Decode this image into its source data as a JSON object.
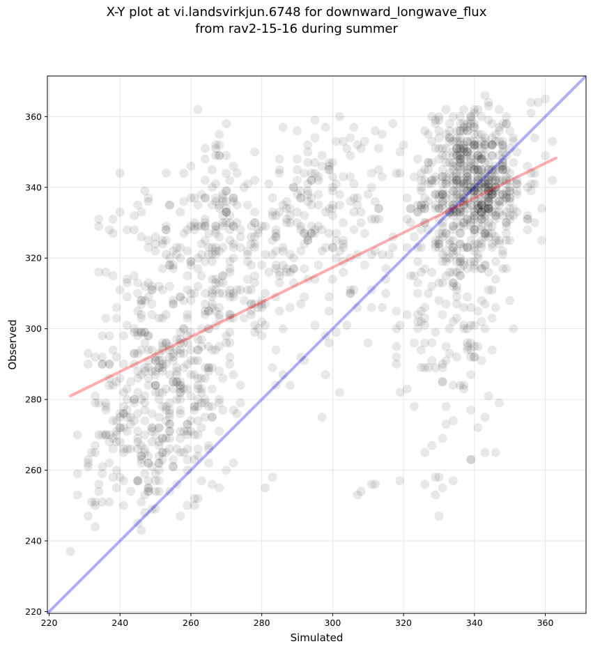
{
  "chart_data": {
    "type": "scatter",
    "title_line1": "X-Y plot at vi.landsvirkjun.6748 for downward_longwave_flux",
    "title_line2": "from rav2-15-16 during summer",
    "xlabel": "Simulated",
    "ylabel": "Observed",
    "xlim": [
      219.5,
      371.5
    ],
    "ylim": [
      219.5,
      371.5
    ],
    "xticks": [
      220,
      240,
      260,
      280,
      300,
      320,
      340,
      360
    ],
    "yticks": [
      220,
      240,
      260,
      280,
      300,
      320,
      340,
      360
    ],
    "grid": true,
    "point_color": "#000000",
    "point_alpha": 0.09,
    "reference_line": {
      "label": "1:1",
      "color": "#0000ff",
      "x": [
        219.5,
        371.5
      ],
      "y": [
        219.5,
        371.5
      ]
    },
    "fit_line": {
      "color": "#ff0000",
      "x": [
        226,
        363
      ],
      "y": [
        281,
        348.3
      ]
    },
    "clusters": [
      {
        "cx": 340,
        "cy": 342,
        "sx": 7,
        "sy": 11,
        "n": 520,
        "seed": 11
      },
      {
        "cx": 333,
        "cy": 312,
        "sx": 7,
        "sy": 22,
        "n": 200,
        "seed": 23
      },
      {
        "cx": 252,
        "cy": 283,
        "sx": 9,
        "sy": 16,
        "n": 340,
        "seed": 37
      },
      {
        "cx": 270,
        "cy": 322,
        "sx": 14,
        "sy": 15,
        "n": 300,
        "seed": 41
      },
      {
        "cx": 300,
        "cy": 330,
        "sx": 13,
        "sy": 17,
        "n": 170,
        "seed": 53
      },
      {
        "cx": 240,
        "cy": 262,
        "sx": 7,
        "sy": 9,
        "n": 50,
        "seed": 67
      }
    ],
    "points": [
      [
        226,
        237
      ],
      [
        231,
        247
      ],
      [
        232,
        251
      ],
      [
        233,
        251
      ],
      [
        234,
        254
      ],
      [
        246,
        243
      ],
      [
        234,
        331
      ],
      [
        238,
        331
      ],
      [
        234,
        329
      ],
      [
        240,
        333
      ],
      [
        234,
        316
      ],
      [
        242,
        328
      ],
      [
        238,
        315
      ],
      [
        239,
        303
      ],
      [
        302,
        360
      ],
      [
        306,
        357
      ],
      [
        314,
        355
      ],
      [
        298,
        357
      ],
      [
        295,
        359
      ],
      [
        317,
        358
      ],
      [
        281,
        255
      ],
      [
        283,
        258
      ],
      [
        297,
        275
      ],
      [
        307,
        253
      ],
      [
        308,
        254
      ],
      [
        311,
        256
      ],
      [
        312,
        256
      ],
      [
        319,
        257
      ],
      [
        347,
        279
      ],
      [
        345,
        294
      ],
      [
        346,
        265
      ],
      [
        343,
        265
      ],
      [
        341,
        272
      ],
      [
        362,
        342
      ],
      [
        359,
        325
      ],
      [
        362,
        353
      ],
      [
        360,
        365
      ],
      [
        358,
        364
      ],
      [
        323,
        296
      ],
      [
        318,
        290
      ],
      [
        321,
        283
      ],
      [
        319,
        282
      ],
      [
        330,
        258
      ],
      [
        331,
        255
      ],
      [
        326,
        265
      ],
      [
        334,
        284
      ]
    ]
  }
}
